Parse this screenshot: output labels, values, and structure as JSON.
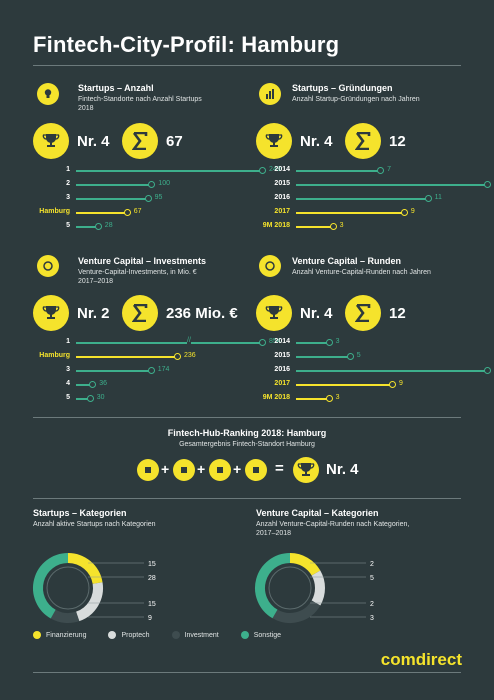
{
  "title": "Fintech-City-Profil: Hamburg",
  "colors": {
    "accent": "#f5e32c",
    "teal": "#3daf8c",
    "light": "#d8dcdc",
    "dark": "#3e4c4f",
    "bg": "#2d3a3d"
  },
  "panels": [
    {
      "title": "Startups – Anzahl",
      "subtitle": [
        "Fintech-Standorte nach Anzahl Startups",
        "2018"
      ],
      "icon": "lightbulb-icon",
      "rank": "Nr. 4",
      "sum": "67"
    },
    {
      "title": "Startups – Gründungen",
      "subtitle": [
        "Anzahl Startup-Gründungen nach Jahren"
      ],
      "icon": "bar-chart-icon",
      "rank": "Nr. 4",
      "sum": "12"
    },
    {
      "title": "Venture Capital – Investments",
      "subtitle": [
        "Venture-Capital-Investments, in Mio. €",
        "2017–2018"
      ],
      "icon": "coins-icon",
      "rank": "Nr. 2",
      "sum": "236 Mio. €"
    },
    {
      "title": "Venture Capital – Runden",
      "subtitle": [
        "Anzahl Venture-Capital-Runden nach Jahren"
      ],
      "icon": "coins-icon",
      "rank": "Nr. 4",
      "sum": "12"
    }
  ],
  "hub": {
    "title": "Fintech-Hub-Ranking 2018: Hamburg",
    "subtitle": "Gesamtergebnis Fintech-Standort Hamburg",
    "plus": "+",
    "equals": "=",
    "result": "Nr. 4"
  },
  "donuts": [
    {
      "title": "Startups – Kategorien",
      "subtitle": [
        "Anzahl aktive Startups nach Kategorien"
      ]
    },
    {
      "title": "Venture Capital – Kategorien",
      "subtitle": [
        "Anzahl Venture-Capital-Runden nach Kategorien,",
        "2017–2018"
      ]
    }
  ],
  "legend": [
    {
      "label": "Finanzierung",
      "color": "#f5e32c"
    },
    {
      "label": "Proptech",
      "color": "#d8dcdc"
    },
    {
      "label": "Investment",
      "color": "#3e4c4f"
    },
    {
      "label": "Sonstige",
      "color": "#3daf8c"
    }
  ],
  "brand": "comdirect",
  "chart_data": [
    {
      "type": "bar",
      "title": "Startups – Anzahl",
      "categories": [
        "1",
        "2",
        "3",
        "Hamburg",
        "5"
      ],
      "values": [
        249,
        100,
        95,
        67,
        28
      ],
      "highlight": "Hamburg",
      "xlim": [
        0,
        249
      ]
    },
    {
      "type": "bar",
      "title": "Startups – Gründungen",
      "categories": [
        "2014",
        "2015",
        "2016",
        "2017",
        "9M 2018"
      ],
      "values": [
        7,
        16,
        11,
        9,
        3
      ],
      "highlight": [
        "2017",
        "9M 2018"
      ],
      "xlim": [
        0,
        16
      ]
    },
    {
      "type": "bar",
      "title": "Venture Capital – Investments",
      "categories": [
        "1",
        "Hamburg",
        "3",
        "4",
        "5"
      ],
      "values": [
        854,
        236,
        174,
        36,
        30
      ],
      "highlight": "Hamburg",
      "axis_break": true
    },
    {
      "type": "bar",
      "title": "Venture Capital – Runden",
      "categories": [
        "2014",
        "2015",
        "2016",
        "2017",
        "9M 2018"
      ],
      "values": [
        3,
        5,
        18,
        9,
        3
      ],
      "highlight": [
        "2017",
        "9M 2018"
      ],
      "xlim": [
        0,
        18
      ]
    },
    {
      "type": "pie",
      "title": "Startups – Kategorien",
      "labels": [
        "Finanzierung",
        "Proptech",
        "Investment",
        "Sonstige"
      ],
      "values": [
        15,
        15,
        9,
        28
      ]
    },
    {
      "type": "pie",
      "title": "Venture Capital – Kategorien",
      "labels": [
        "Finanzierung",
        "Proptech",
        "Investment",
        "Sonstige"
      ],
      "values": [
        2,
        2,
        3,
        5
      ]
    }
  ]
}
